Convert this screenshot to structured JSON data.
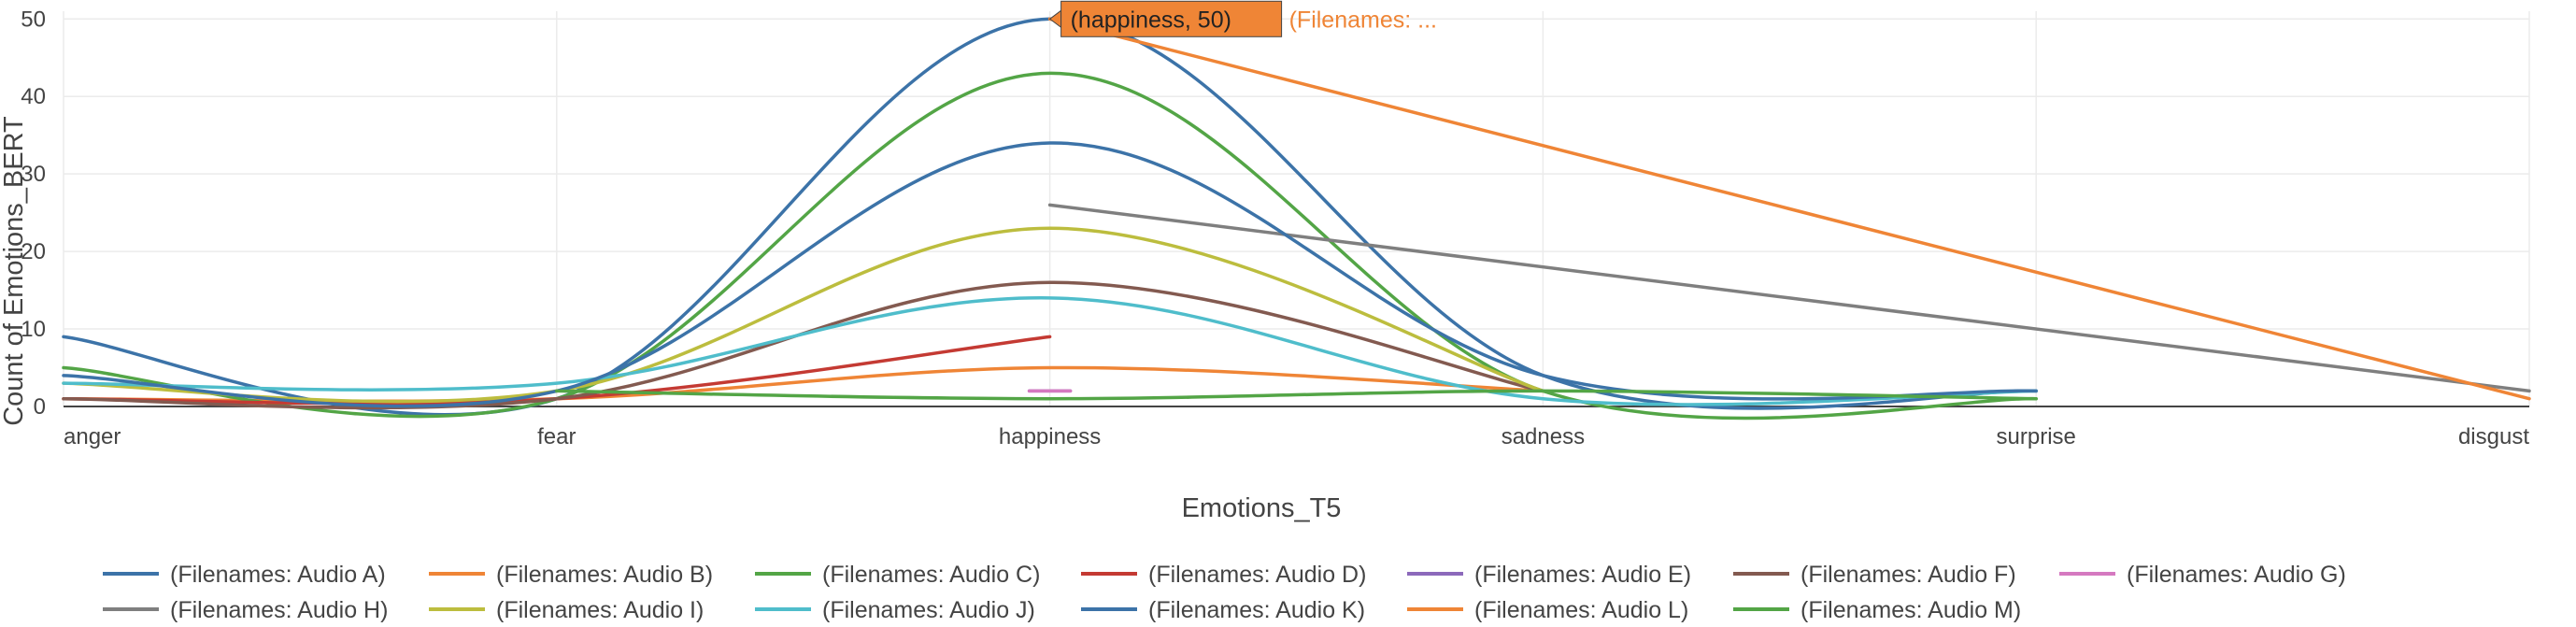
{
  "chart_data": {
    "type": "line",
    "xlabel": "Emotions_T5",
    "ylabel": "Count of Emotions_BERT",
    "categories": [
      "anger",
      "fear",
      "happiness",
      "sadness",
      "surprise",
      "disgust"
    ],
    "ylim": [
      0,
      51
    ],
    "yticks": [
      0,
      10,
      20,
      30,
      40,
      50
    ],
    "grid": true,
    "legend_position": "bottom",
    "series": [
      {
        "name": "(Filenames: Audio A)",
        "color": "#3c73a8",
        "values": [
          9,
          1,
          50,
          4,
          2,
          null
        ]
      },
      {
        "name": "(Filenames: Audio B)",
        "color": "#ef8536",
        "values": [
          1,
          1,
          5,
          2,
          null,
          null
        ]
      },
      {
        "name": "(Filenames: Audio C)",
        "color": "#53a546",
        "values": [
          5,
          1,
          43,
          2,
          1,
          null
        ]
      },
      {
        "name": "(Filenames: Audio D)",
        "color": "#c43a33",
        "values": [
          1,
          1,
          9,
          null,
          null,
          null
        ]
      },
      {
        "name": "(Filenames: Audio E)",
        "color": "#8c69bb",
        "values": [
          null,
          null,
          2,
          null,
          null,
          null
        ]
      },
      {
        "name": "(Filenames: Audio F)",
        "color": "#835a50",
        "values": [
          1,
          1,
          16,
          2,
          null,
          null
        ]
      },
      {
        "name": "(Filenames: Audio G)",
        "color": "#d579c0",
        "values": [
          null,
          null,
          2,
          null,
          null,
          null
        ]
      },
      {
        "name": "(Filenames: Audio H)",
        "color": "#7f7f7f",
        "values": [
          null,
          null,
          26,
          null,
          null,
          2
        ]
      },
      {
        "name": "(Filenames: Audio I)",
        "color": "#bcbd3e",
        "values": [
          3,
          2,
          23,
          2,
          null,
          null
        ]
      },
      {
        "name": "(Filenames: Audio J)",
        "color": "#4fbdcb",
        "values": [
          3,
          3,
          14,
          1,
          2,
          null
        ]
      },
      {
        "name": "(Filenames: Audio K)",
        "color": "#3c73a8",
        "values": [
          4,
          2,
          34,
          4,
          2,
          null
        ]
      },
      {
        "name": "(Filenames: Audio L)",
        "color": "#ef8536",
        "values": [
          null,
          null,
          50,
          null,
          null,
          1
        ]
      },
      {
        "name": "(Filenames: Audio M)",
        "color": "#53a546",
        "values": [
          null,
          2,
          1,
          2,
          1,
          null
        ]
      }
    ],
    "hover": {
      "label": "(happiness, 50)",
      "extra": "(Filenames: ...",
      "color": "#ef8536",
      "point": {
        "category": "happiness",
        "value": 50
      }
    }
  }
}
